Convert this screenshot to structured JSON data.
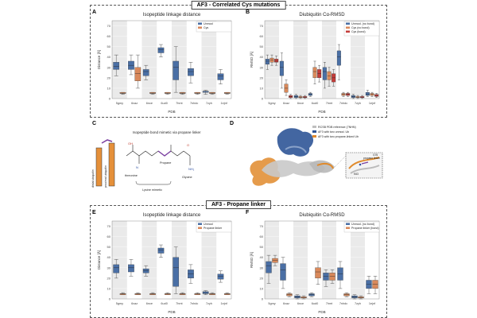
{
  "section_top": {
    "title": "AF3 - Correlated Cys mutations"
  },
  "section_bottom": {
    "title": "AF3 - Propane linker"
  },
  "panels": {
    "A": {
      "letter": "A",
      "title": "Isopeptide linkage distance"
    },
    "B": {
      "letter": "B",
      "title": "Diubiquitin Cα-RMSD"
    },
    "C": {
      "letter": "C",
      "title": "Isopeptide bond mimetic via propane linker"
    },
    "D": {
      "letter": "D"
    },
    "E": {
      "letter": "E",
      "title": "Isopeptide linkage distance"
    },
    "F": {
      "letter": "F",
      "title": "Diubiquitin Cα-RMSD"
    }
  },
  "panel_C_labels": {
    "proximal": "proximal ubiquitin",
    "distal": "distal ubiquitin",
    "propane": "Propane",
    "threonine": "threonine",
    "glycine": "Glycine",
    "lysine": "Lysine mimetic"
  },
  "panel_D_legend": [
    "RCSB PDB reference (7NHN)",
    "AF3 with two unmod. Ub",
    "AF3 with two propane-linked Ub"
  ],
  "panel_D_inset": {
    "label1": "propane linker",
    "label2": "G76",
    "label3": "K63"
  },
  "colors": {
    "blue": "#4a6fa5",
    "orange": "#d9895b",
    "red": "#c43c39",
    "band": "#d8d8d8"
  },
  "chart_data": [
    {
      "id": "A",
      "type": "box",
      "title": "Isopeptide linkage distance",
      "xlabel": "PDB",
      "ylabel": "Distance [Å]",
      "ylim": [
        0,
        75
      ],
      "yticks": [
        0,
        10,
        20,
        30,
        40,
        50,
        60,
        70
      ],
      "categories": [
        "5gmy",
        "6xaz",
        "6nce",
        "6ud0",
        "7hmt",
        "7nhdc",
        "7zyh",
        "1ejnf"
      ],
      "series": [
        {
          "name": "Unmod",
          "color": "#4a6fa5",
          "boxes": [
            [
              22,
              28,
              31,
              35,
              42
            ],
            [
              23,
              28,
              32,
              36,
              42
            ],
            [
              18,
              22,
              26,
              28,
              32
            ],
            [
              40,
              44,
              47,
              49,
              52
            ],
            [
              6,
              18,
              30,
              36,
              50
            ],
            [
              15,
              22,
              26,
              29,
              35
            ],
            [
              4,
              6,
              7,
              7,
              8
            ],
            [
              14,
              18,
              22,
              24,
              28
            ]
          ]
        },
        {
          "name": "Cys",
          "color": "#d9895b",
          "boxes": [
            [
              4,
              5,
              5,
              6,
              6
            ],
            [
              10,
              17,
              24,
              30,
              42
            ],
            [
              4,
              5,
              5,
              6,
              6
            ],
            [
              4,
              5,
              5,
              6,
              6
            ],
            [
              4,
              5,
              5,
              6,
              6
            ],
            [
              4,
              5,
              5,
              6,
              6
            ],
            [
              4,
              5,
              5,
              6,
              6
            ],
            [
              4,
              5,
              5,
              6,
              6
            ]
          ]
        }
      ]
    },
    {
      "id": "B",
      "type": "box",
      "title": "Diubiquitin Cα-RMSD",
      "xlabel": "PDB",
      "ylabel": "RMSD [Å]",
      "ylim": [
        0,
        75
      ],
      "yticks": [
        0,
        10,
        20,
        30,
        40,
        50,
        60,
        70
      ],
      "categories": [
        "5gmy",
        "6xaz",
        "6nce",
        "6ud0",
        "7hmt",
        "7nhdc",
        "7zyh",
        "1ejnf"
      ],
      "series": [
        {
          "name": "Unmod. (no bond)",
          "color": "#4a6fa5",
          "boxes": [
            [
              28,
              33,
              36,
              38,
              42
            ],
            [
              10,
              22,
              30,
              36,
              44
            ],
            [
              0,
              1,
              2,
              3,
              4
            ],
            [
              2,
              3,
              4,
              5,
              6
            ],
            [
              10,
              18,
              26,
              30,
              35
            ],
            [
              18,
              32,
              40,
              46,
              52
            ],
            [
              0,
              1,
              2,
              3,
              4
            ],
            [
              2,
              3,
              4,
              6,
              8
            ]
          ]
        },
        {
          "name": "Cys (no bond)",
          "color": "#d9895b",
          "boxes": [
            [
              32,
              35,
              37,
              39,
              42
            ],
            [
              3,
              6,
              10,
              14,
              18
            ],
            [
              0,
              1,
              1,
              2,
              3
            ],
            [
              14,
              20,
              26,
              30,
              36
            ],
            [
              12,
              18,
              22,
              26,
              30
            ],
            [
              2,
              3,
              4,
              5,
              6
            ],
            [
              0,
              1,
              1,
              2,
              3
            ],
            [
              2,
              3,
              4,
              5,
              6
            ]
          ]
        },
        {
          "name": "Cys (bond)",
          "color": "#c43c39",
          "boxes": [
            [
              32,
              35,
              36,
              38,
              41
            ],
            [
              0,
              1,
              2,
              3,
              4
            ],
            [
              0,
              1,
              1,
              2,
              3
            ],
            [
              16,
              20,
              24,
              28,
              32
            ],
            [
              12,
              16,
              20,
              24,
              28
            ],
            [
              2,
              3,
              4,
              5,
              6
            ],
            [
              0,
              1,
              1,
              2,
              3
            ],
            [
              1,
              2,
              3,
              4,
              5
            ]
          ]
        }
      ]
    },
    {
      "id": "E",
      "type": "box",
      "title": "Isopeptide linkage distance",
      "xlabel": "PDB",
      "ylabel": "Distance [Å]",
      "ylim": [
        0,
        75
      ],
      "yticks": [
        0,
        10,
        20,
        30,
        40,
        50,
        60,
        70
      ],
      "categories": [
        "5gmy",
        "6xaz",
        "6nce",
        "6ud0",
        "7hmt",
        "7nhdc",
        "7zyh",
        "1ejnf"
      ],
      "series": [
        {
          "name": "Unmod",
          "color": "#4a6fa5",
          "boxes": [
            [
              20,
              25,
              30,
              33,
              38
            ],
            [
              22,
              26,
              30,
              33,
              38
            ],
            [
              22,
              25,
              27,
              29,
              32
            ],
            [
              40,
              44,
              47,
              49,
              52
            ],
            [
              5,
              12,
              30,
              40,
              50
            ],
            [
              15,
              20,
              24,
              28,
              33
            ],
            [
              4,
              5,
              6,
              7,
              8
            ],
            [
              16,
              19,
              22,
              24,
              27
            ]
          ]
        },
        {
          "name": "Propane linker",
          "color": "#d9895b",
          "boxes": [
            [
              4,
              4,
              5,
              5,
              6
            ],
            [
              4,
              4,
              5,
              5,
              6
            ],
            [
              4,
              4,
              5,
              5,
              6
            ],
            [
              4,
              4,
              5,
              5,
              6
            ],
            [
              4,
              4,
              5,
              5,
              6
            ],
            [
              4,
              4,
              5,
              5,
              6
            ],
            [
              4,
              4,
              5,
              5,
              6
            ],
            [
              4,
              4,
              5,
              5,
              6
            ]
          ]
        }
      ]
    },
    {
      "id": "F",
      "type": "box",
      "title": "Diubiquitin Cα-RMSD",
      "xlabel": "PDB",
      "ylabel": "RMSD [Å]",
      "ylim": [
        0,
        75
      ],
      "yticks": [
        0,
        10,
        20,
        30,
        40,
        50,
        60,
        70
      ],
      "categories": [
        "5gmy",
        "6xaz",
        "6nce",
        "6ud0",
        "7hmt",
        "7nhdc",
        "7zyh",
        "1ejnf"
      ],
      "series": [
        {
          "name": "Unmod. (no bond)",
          "color": "#4a6fa5",
          "boxes": [
            [
              15,
              25,
              32,
              36,
              42
            ],
            [
              10,
              18,
              28,
              34,
              40
            ],
            [
              0,
              1,
              2,
              3,
              4
            ],
            [
              2,
              3,
              4,
              5,
              6
            ],
            [
              12,
              18,
              22,
              25,
              28
            ],
            [
              10,
              18,
              24,
              30,
              36
            ],
            [
              0,
              1,
              2,
              3,
              4
            ],
            [
              5,
              10,
              14,
              18,
              22
            ]
          ]
        },
        {
          "name": "Propane linker (bond)",
          "color": "#d9895b",
          "boxes": [
            [
              32,
              35,
              37,
              39,
              42
            ],
            [
              2,
              3,
              4,
              5,
              6
            ],
            [
              0,
              1,
              1,
              2,
              3
            ],
            [
              14,
              20,
              26,
              30,
              36
            ],
            [
              15,
              18,
              22,
              25,
              28
            ],
            [
              2,
              3,
              4,
              5,
              6
            ],
            [
              0,
              1,
              1,
              2,
              3
            ],
            [
              5,
              10,
              14,
              18,
              22
            ]
          ]
        }
      ]
    }
  ]
}
